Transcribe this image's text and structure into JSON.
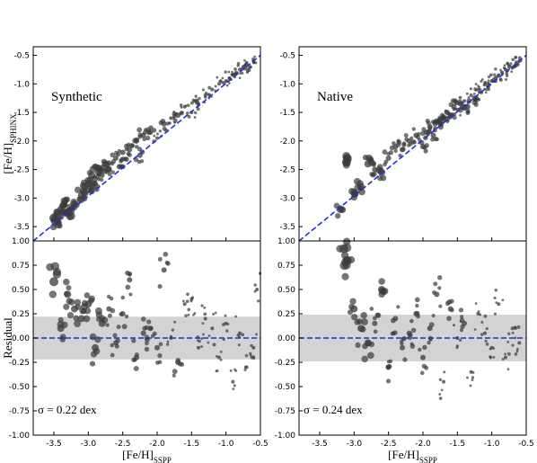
{
  "chart_data": [
    {
      "type": "scatter",
      "title": "Synthetic",
      "ylabel": "[Fe/H]SPHINX",
      "xlim": [
        -3.8,
        -0.5
      ],
      "ylim": [
        -3.75,
        -0.35
      ],
      "yticks": [
        -3.5,
        -3.0,
        -2.5,
        -2.0,
        -1.5,
        -1.0,
        -0.5
      ],
      "yticklabels": [
        "-3.5",
        "-3.0",
        "-2.5",
        "-2.0",
        "-1.5",
        "-1.0",
        "-0.5"
      ],
      "reference_line": "1:1",
      "series": [
        {
          "x": [
            -3.5,
            -3.45,
            -3.4,
            -3.35,
            -3.3,
            -3.2,
            -3.1,
            -3.05,
            -3.0,
            -2.95,
            -2.9,
            -2.85,
            -2.8,
            -2.75,
            -2.7,
            -2.6,
            -2.55,
            -2.5,
            -2.4,
            -2.3,
            -2.25,
            -2.2,
            -2.1,
            -2.0,
            -1.9,
            -1.8,
            -1.7,
            -1.6,
            -1.5,
            -1.45,
            -1.4,
            -1.3,
            -1.2,
            -1.1,
            -1.0,
            -0.95,
            -0.9,
            -0.85,
            -0.8,
            -0.75,
            -0.7,
            -0.65,
            -0.6
          ],
          "y": [
            -3.35,
            -3.4,
            -3.2,
            -3.05,
            -3.25,
            -3.1,
            -2.95,
            -2.8,
            -2.85,
            -2.6,
            -2.75,
            -2.55,
            -2.6,
            -2.4,
            -2.5,
            -2.3,
            -2.45,
            -2.2,
            -2.15,
            -2.0,
            -2.25,
            -1.9,
            -1.85,
            -1.95,
            -1.7,
            -1.6,
            -1.55,
            -1.4,
            -1.5,
            -1.3,
            -1.35,
            -1.2,
            -1.1,
            -1.0,
            -0.95,
            -0.9,
            -0.85,
            -0.8,
            -0.75,
            -0.7,
            -0.65,
            -0.7,
            -0.6
          ],
          "sizes": [
            5,
            4,
            4,
            4,
            5,
            4,
            4,
            4,
            4,
            4,
            3,
            4,
            3,
            4,
            3,
            3,
            3,
            3,
            3,
            3,
            3,
            3,
            3,
            2,
            3,
            2,
            3,
            2,
            2,
            2,
            2,
            2,
            2,
            2,
            2,
            2,
            2,
            2,
            2,
            2,
            2,
            2,
            2
          ]
        }
      ]
    },
    {
      "type": "scatter",
      "title": "Native",
      "ylabel": "",
      "xlim": [
        -3.8,
        -0.5
      ],
      "ylim": [
        -3.75,
        -0.35
      ],
      "yticks": [
        -3.5,
        -3.0,
        -2.5,
        -2.0,
        -1.5,
        -1.0,
        -0.5
      ],
      "yticklabels": [
        "-3.5",
        "-3.0",
        "-2.5",
        "-2.0",
        "-1.5",
        "-1.0",
        "-0.5"
      ],
      "reference_line": "1:1",
      "series": [
        {
          "x": [
            -3.2,
            -3.1,
            -3.0,
            -2.9,
            -2.8,
            -2.7,
            -2.6,
            -2.5,
            -2.4,
            -2.3,
            -2.2,
            -2.1,
            -2.0,
            -1.95,
            -1.9,
            -1.85,
            -1.8,
            -1.75,
            -1.7,
            -1.65,
            -1.6,
            -1.55,
            -1.5,
            -1.45,
            -1.4,
            -1.35,
            -1.3,
            -1.25,
            -1.2,
            -1.15,
            -1.1,
            -1.05,
            -1.0,
            -0.95,
            -0.9,
            -0.85,
            -0.8,
            -0.75,
            -0.7,
            -0.65,
            -0.6
          ],
          "y": [
            -3.2,
            -2.3,
            -2.9,
            -2.8,
            -2.4,
            -2.5,
            -2.55,
            -2.3,
            -2.1,
            -2.15,
            -2.0,
            -1.9,
            -2.1,
            -1.85,
            -1.75,
            -1.9,
            -1.65,
            -1.7,
            -1.6,
            -1.5,
            -1.55,
            -1.4,
            -1.45,
            -1.35,
            -1.3,
            -1.4,
            -1.2,
            -1.25,
            -1.1,
            -1.15,
            -1.0,
            -1.05,
            -0.95,
            -0.9,
            -0.85,
            -0.8,
            -0.75,
            -0.7,
            -0.72,
            -0.65,
            -0.6
          ],
          "sizes": [
            4,
            5,
            4,
            4,
            4,
            3,
            4,
            3,
            3,
            3,
            3,
            3,
            3,
            3,
            3,
            3,
            3,
            3,
            3,
            3,
            3,
            3,
            2,
            3,
            2,
            3,
            2,
            3,
            2,
            2,
            2,
            2,
            2,
            2,
            2,
            2,
            2,
            2,
            2,
            2,
            2
          ]
        }
      ]
    },
    {
      "type": "scatter",
      "title": "",
      "xlabel": "[Fe/H]SSPP",
      "ylabel": "Residual",
      "xlim": [
        -3.8,
        -0.5
      ],
      "ylim": [
        -1.0,
        1.0
      ],
      "xticks": [
        -3.5,
        -3.0,
        -2.5,
        -2.0,
        -1.5,
        -1.0,
        -0.5
      ],
      "xticklabels": [
        "-3.5",
        "-3.0",
        "-2.5",
        "-2.0",
        "-1.5",
        "-1.0",
        "-0.5"
      ],
      "yticks": [
        -1.0,
        -0.75,
        -0.5,
        -0.25,
        0.0,
        0.25,
        0.5,
        0.75,
        1.0
      ],
      "yticklabels": [
        "-1.00",
        "-0.75",
        "-0.50",
        "-0.25",
        "0.00",
        "0.25",
        "0.50",
        "0.75",
        "1.00"
      ],
      "annotation": "σ =  0.22 dex",
      "sigma": 0.22,
      "series": [
        {
          "x": [
            -3.5,
            -3.4,
            -3.3,
            -3.2,
            -3.1,
            -3.0,
            -2.9,
            -2.8,
            -2.7,
            -2.6,
            -2.5,
            -2.4,
            -2.3,
            -2.2,
            -2.1,
            -2.0,
            -1.9,
            -1.8,
            -1.7,
            -1.6,
            -1.5,
            -1.4,
            -1.3,
            -1.2,
            -1.1,
            -1.0,
            -0.9,
            -0.8,
            -0.7,
            -0.6,
            -0.55
          ],
          "y": [
            0.58,
            0.1,
            0.45,
            0.3,
            0.2,
            0.35,
            -0.1,
            0.15,
            0.3,
            -0.05,
            0.25,
            0.6,
            -0.2,
            0.05,
            0.1,
            -0.1,
            0.7,
            0.0,
            -0.25,
            0.35,
            0.4,
            -0.1,
            0.2,
            0.1,
            -0.2,
            0.15,
            -0.45,
            0.05,
            -0.3,
            -0.1,
            0.5
          ],
          "sizes": [
            5,
            4,
            4,
            4,
            4,
            4,
            4,
            4,
            3,
            3,
            3,
            3,
            3,
            3,
            3,
            3,
            3,
            2,
            3,
            2,
            2,
            2,
            2,
            2,
            2,
            2,
            2,
            2,
            2,
            2,
            2
          ]
        }
      ]
    },
    {
      "type": "scatter",
      "title": "",
      "xlabel": "[Fe/H]SSPP",
      "ylabel": "",
      "xlim": [
        -3.8,
        -0.5
      ],
      "ylim": [
        -1.0,
        1.0
      ],
      "xticks": [
        -3.5,
        -3.0,
        -2.5,
        -2.0,
        -1.5,
        -1.0,
        -0.5
      ],
      "xticklabels": [
        "-3.5",
        "-3.0",
        "-2.5",
        "-2.0",
        "-1.5",
        "-1.0",
        "-0.5"
      ],
      "yticks": [
        -1.0,
        -0.75,
        -0.5,
        -0.25,
        0.0,
        0.25,
        0.5,
        0.75,
        1.0
      ],
      "yticklabels": [
        "-1.00",
        "-0.75",
        "-0.50",
        "-0.25",
        "0.00",
        "0.25",
        "0.50",
        "0.75",
        "1.00"
      ],
      "annotation": "σ =  0.24 dex",
      "sigma": 0.24,
      "series": [
        {
          "x": [
            -3.15,
            -3.1,
            -3.0,
            -2.9,
            -2.8,
            -2.7,
            -2.6,
            -2.5,
            -2.4,
            -2.3,
            -2.2,
            -2.1,
            -2.0,
            -1.9,
            -1.8,
            -1.7,
            -1.6,
            -1.5,
            -1.4,
            -1.3,
            -1.2,
            -1.1,
            -1.0,
            -0.9,
            -0.8,
            -0.7,
            -0.6
          ],
          "y": [
            0.92,
            0.8,
            0.3,
            0.1,
            -0.05,
            0.15,
            0.5,
            -0.3,
            0.2,
            -0.1,
            0.05,
            0.25,
            -0.2,
            0.1,
            0.45,
            -0.45,
            0.3,
            0.0,
            0.15,
            -0.35,
            0.25,
            0.05,
            -0.1,
            0.35,
            -0.2,
            0.1,
            -0.05
          ],
          "sizes": [
            5,
            5,
            4,
            4,
            4,
            3,
            4,
            3,
            3,
            3,
            3,
            3,
            3,
            3,
            3,
            2,
            3,
            2,
            3,
            2,
            2,
            2,
            2,
            2,
            2,
            2,
            2
          ]
        }
      ]
    }
  ]
}
